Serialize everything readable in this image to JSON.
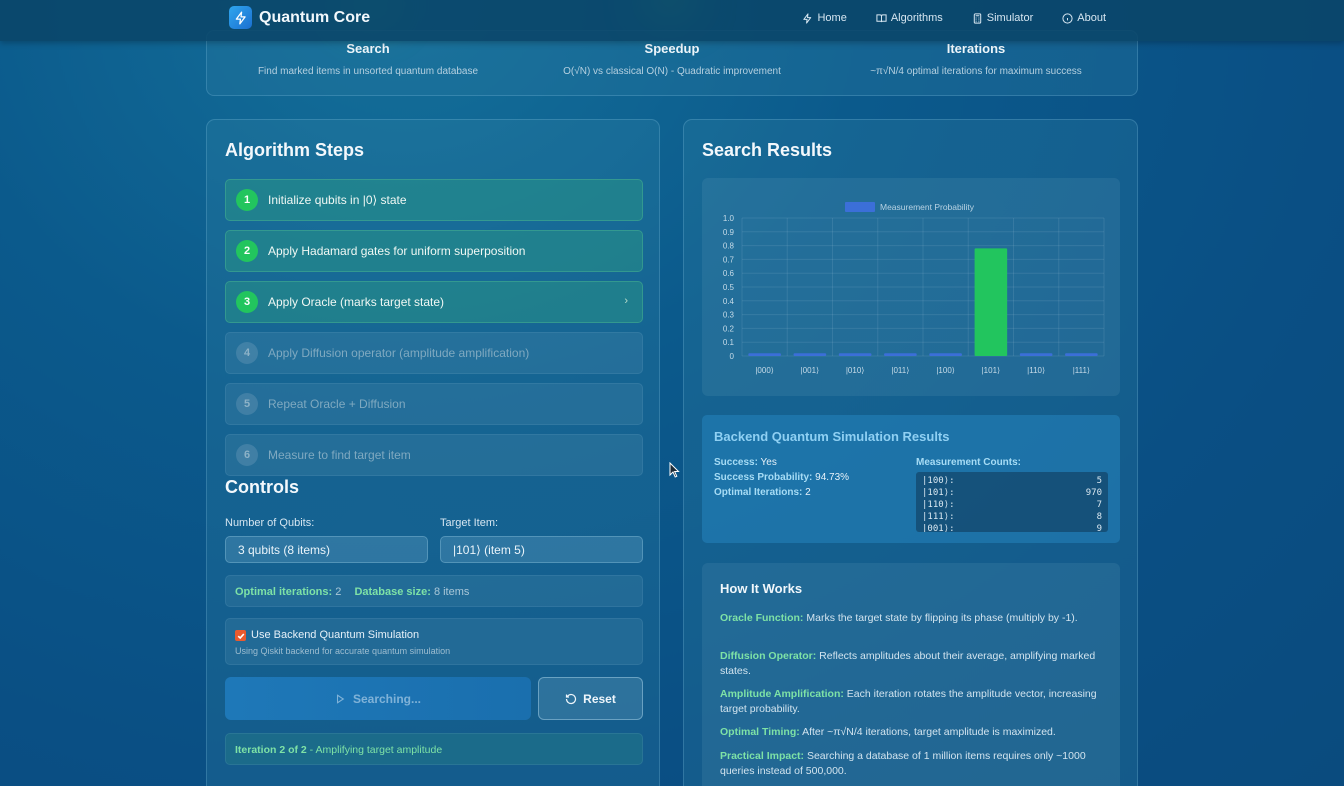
{
  "nav": {
    "brand": "Quantum Core",
    "links": [
      {
        "label": "Home",
        "icon": "zap-icon"
      },
      {
        "label": "Algorithms",
        "icon": "book-icon"
      },
      {
        "label": "Simulator",
        "icon": "calculator-icon"
      },
      {
        "label": "About",
        "icon": "info-icon"
      }
    ]
  },
  "info": [
    {
      "title": "Search",
      "desc": "Find marked items in unsorted quantum database"
    },
    {
      "title": "Speedup",
      "desc": "O(√N) vs classical O(N) - Quadratic improvement"
    },
    {
      "title": "Iterations",
      "desc": "~π√N/4 optimal iterations for maximum success"
    }
  ],
  "steps_title": "Algorithm Steps",
  "steps": [
    {
      "num": "1",
      "label": "Initialize qubits in |0⟩ state",
      "status": "done"
    },
    {
      "num": "2",
      "label": "Apply Hadamard gates for uniform superposition",
      "status": "done"
    },
    {
      "num": "3",
      "label": "Apply Oracle (marks target state)",
      "status": "current",
      "chevron": "›"
    },
    {
      "num": "4",
      "label": "Apply Diffusion operator (amplitude amplification)",
      "status": "pending"
    },
    {
      "num": "5",
      "label": "Repeat Oracle + Diffusion",
      "status": "pending"
    },
    {
      "num": "6",
      "label": "Measure to find target item",
      "status": "pending"
    }
  ],
  "controls": {
    "title": "Controls",
    "qubits_label": "Number of Qubits:",
    "qubits_value": "3 qubits (8 items)",
    "target_label": "Target Item:",
    "target_value": "|101⟩ (item 5)",
    "optimal_label": "Optimal iterations:",
    "optimal_value": "2",
    "dbsize_label": "Database size:",
    "dbsize_value": "8 items",
    "backend_checkbox": "Use Backend Quantum Simulation",
    "backend_checked": true,
    "backend_note": "Using Qiskit backend for accurate quantum simulation",
    "search_button": "Searching...",
    "reset_button": "Reset",
    "status_bold": "Iteration 2 of 2",
    "status_rest": " - Amplifying target amplitude"
  },
  "results_title": "Search Results",
  "chart_data": {
    "type": "bar",
    "categories": [
      "|000⟩",
      "|001⟩",
      "|010⟩",
      "|011⟩",
      "|100⟩",
      "|101⟩",
      "|110⟩",
      "|111⟩"
    ],
    "series": [
      {
        "name": "Measurement Probability",
        "values": [
          0.02,
          0.02,
          0.02,
          0.02,
          0.02,
          0.78,
          0.02,
          0.02
        ]
      }
    ],
    "ylim": [
      0,
      1.0
    ],
    "yticks": [
      "0",
      "0.1",
      "0.2",
      "0.3",
      "0.4",
      "0.5",
      "0.6",
      "0.7",
      "0.8",
      "0.9",
      "1.0"
    ],
    "highlight_index": 5,
    "colors": {
      "default": "#3b6fd8",
      "highlight": "#22c55e"
    },
    "legend": "top-center",
    "grid": true
  },
  "backend": {
    "title": "Backend Quantum Simulation Results",
    "success_label": "Success:",
    "success_value": "Yes",
    "prob_label": "Success Probability:",
    "prob_value": "94.73%",
    "iter_label": "Optimal Iterations:",
    "iter_value": "2",
    "counts_label": "Measurement Counts:",
    "counts": [
      {
        "state": "|100⟩:",
        "count": "5"
      },
      {
        "state": "|101⟩:",
        "count": "970"
      },
      {
        "state": "|110⟩:",
        "count": "7"
      },
      {
        "state": "|111⟩:",
        "count": "8"
      },
      {
        "state": "|001⟩:",
        "count": "9"
      }
    ]
  },
  "how": {
    "title": "How It Works",
    "items": [
      {
        "term": "Oracle Function:",
        "text": " Marks the target state by flipping its phase (multiply by -1)."
      },
      {
        "term": "Diffusion Operator:",
        "text": " Reflects amplitudes about their average, amplifying marked states."
      },
      {
        "term": "Amplitude Amplification:",
        "text": " Each iteration rotates the amplitude vector, increasing target probability."
      },
      {
        "term": "Optimal Timing:",
        "text": " After ~π√N/4 iterations, target amplitude is maximized."
      },
      {
        "term": "Practical Impact:",
        "text": " Searching a database of 1 million items requires only ~1000 queries instead of 500,000."
      }
    ]
  }
}
